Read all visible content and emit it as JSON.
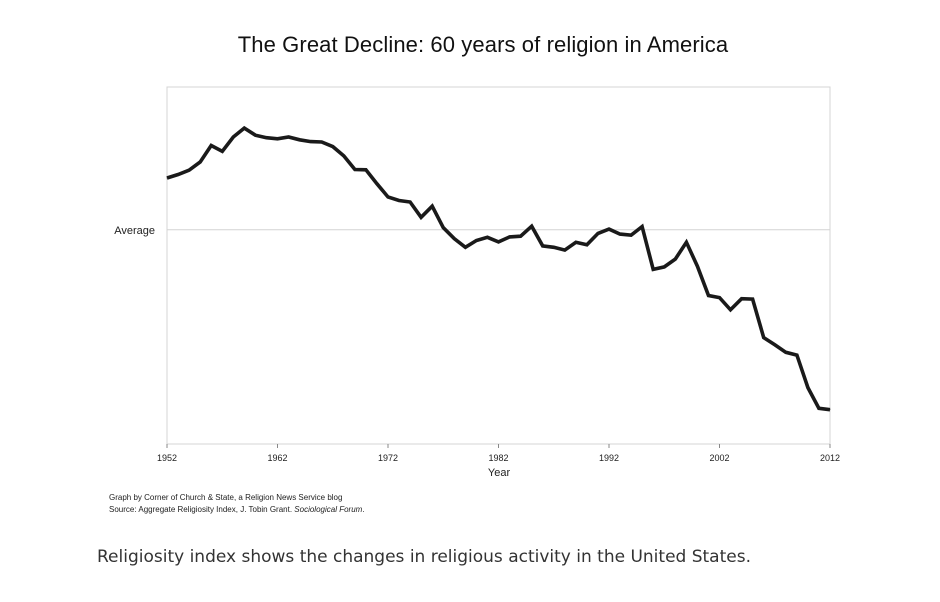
{
  "chart_data": {
    "type": "line",
    "title": "The Great Decline: 60 years of religion in America",
    "xlabel": "Year",
    "ylabel": "",
    "xlim": [
      1952,
      2012
    ],
    "ylim": [
      0,
      100
    ],
    "x_ticks": [
      1952,
      1962,
      1972,
      1982,
      1992,
      2002,
      2012
    ],
    "y_tick_labels": [
      {
        "label": "Average",
        "value": 60
      }
    ],
    "grid": false,
    "legend": "none",
    "line_color": "#1a1a1a",
    "series": [
      {
        "x": [
          1952,
          1953,
          1954,
          1955,
          1956,
          1957,
          1958,
          1959,
          1960,
          1961,
          1962,
          1963,
          1964,
          1965,
          1966,
          1967,
          1968,
          1969,
          1970,
          1971,
          1972,
          1973,
          1974,
          1975,
          1976,
          1977,
          1978,
          1979,
          1980,
          1981,
          1982,
          1983,
          1984,
          1985,
          1986,
          1987,
          1988,
          1989,
          1990,
          1991,
          1992,
          1993,
          1994,
          1995,
          1996,
          1997,
          1998,
          1999,
          2000,
          2001,
          2002,
          2003,
          2004,
          2005,
          2006,
          2007,
          2008,
          2009,
          2010,
          2011,
          2012
        ],
        "values": [
          74.5,
          75.5,
          76.7,
          79.0,
          83.6,
          82.0,
          86.0,
          88.5,
          86.5,
          85.8,
          85.5,
          86.0,
          85.2,
          84.7,
          84.6,
          83.3,
          80.7,
          76.9,
          76.8,
          72.9,
          69.2,
          68.2,
          67.8,
          63.5,
          66.6,
          60.6,
          57.5,
          55.1,
          57.0,
          57.9,
          56.6,
          58.0,
          58.2,
          61.0,
          55.5,
          55.1,
          54.3,
          56.5,
          55.8,
          59.0,
          60.2,
          58.8,
          58.5,
          60.9,
          48.9,
          49.6,
          51.8,
          56.5,
          49.8,
          41.6,
          41.0,
          37.6,
          40.7,
          40.6,
          29.8,
          27.8,
          25.7,
          24.9,
          15.8,
          10.0,
          9.6
        ]
      }
    ]
  },
  "credits": {
    "line1": "Graph by Corner of Church & State, a Religion News Service blog",
    "line2_prefix": "Source: Aggregate Religiosity Index, J. Tobin Grant. ",
    "line2_journal": "Sociological Forum",
    "line2_suffix": "."
  },
  "caption": "Religiosity index shows the changes in religious activity in the United States."
}
